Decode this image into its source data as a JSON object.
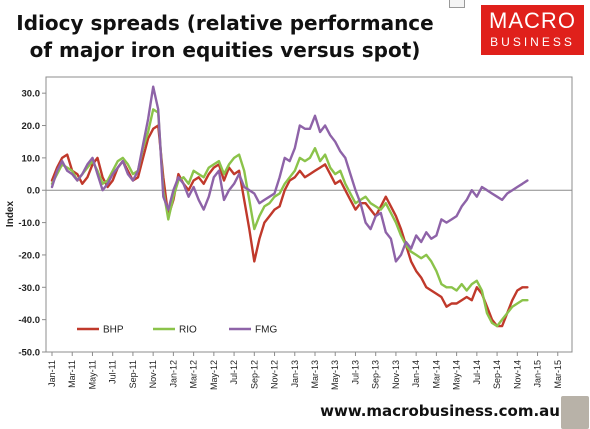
{
  "header": {
    "title_line1": "Idiocy spreads (relative performance",
    "title_line2": "of major iron equities versus spot)"
  },
  "logo": {
    "line1": "MACRO",
    "line2": "BUSINESS",
    "color": "#e0201b"
  },
  "footer": {
    "website": "www.macrobusiness.com.au"
  },
  "chart_data": {
    "type": "line",
    "title": "Idiocy spreads (relative performance of major iron equities versus spot)",
    "xlabel": "",
    "ylabel": "Index",
    "ylim": [
      -50,
      35
    ],
    "yticks": [
      30,
      20,
      10,
      0,
      -10,
      -20,
      -30,
      -40,
      -50
    ],
    "ytick_labels": [
      "30.0",
      "20.0",
      "10.0",
      "0.0",
      "-10.0",
      "-20.0",
      "-30.0",
      "-40.0",
      "-50.0"
    ],
    "xtick_labels": [
      "Jan-11",
      "Mar-11",
      "May-11",
      "Jul-11",
      "Sep-11",
      "Nov-11",
      "Jan-12",
      "Mar-12",
      "May-12",
      "Jul-12",
      "Sep-12",
      "Nov-12",
      "Jan-13",
      "Mar-13",
      "May-13",
      "Jul-13",
      "Sep-13",
      "Nov-13",
      "Jan-14",
      "Mar-14",
      "May-14",
      "Jul-14",
      "Sep-14",
      "Nov-14",
      "Jan-15",
      "Mar-15"
    ],
    "grid": false,
    "legend_position": "bottom-left",
    "series": [
      {
        "name": "BHP",
        "color": "#c0392b",
        "points": [
          [
            0,
            3
          ],
          [
            0.5,
            7
          ],
          [
            1,
            10
          ],
          [
            1.5,
            11
          ],
          [
            2,
            6
          ],
          [
            2.5,
            5
          ],
          [
            3,
            2
          ],
          [
            3.5,
            4
          ],
          [
            4,
            8
          ],
          [
            4.5,
            10
          ],
          [
            5,
            4
          ],
          [
            5.5,
            1
          ],
          [
            6,
            3
          ],
          [
            6.5,
            7
          ],
          [
            7,
            9
          ],
          [
            7.5,
            6
          ],
          [
            8,
            3
          ],
          [
            8.5,
            4
          ],
          [
            9,
            10
          ],
          [
            9.5,
            16
          ],
          [
            10,
            19
          ],
          [
            10.5,
            20
          ],
          [
            11,
            4
          ],
          [
            11.5,
            -8
          ],
          [
            12,
            -3
          ],
          [
            12.5,
            5
          ],
          [
            13,
            2
          ],
          [
            13.5,
            0
          ],
          [
            14,
            3
          ],
          [
            14.5,
            4
          ],
          [
            15,
            2
          ],
          [
            15.5,
            5
          ],
          [
            16,
            7
          ],
          [
            16.5,
            8
          ],
          [
            17,
            3
          ],
          [
            17.5,
            7
          ],
          [
            18,
            5
          ],
          [
            18.5,
            6
          ],
          [
            19,
            -3
          ],
          [
            19.5,
            -12
          ],
          [
            20,
            -22
          ],
          [
            20.5,
            -15
          ],
          [
            21,
            -10
          ],
          [
            21.5,
            -8
          ],
          [
            22,
            -6
          ],
          [
            22.5,
            -5
          ],
          [
            23,
            0
          ],
          [
            23.5,
            3
          ],
          [
            24,
            4
          ],
          [
            24.5,
            6
          ],
          [
            25,
            4
          ],
          [
            25.5,
            5
          ],
          [
            26,
            6
          ],
          [
            26.5,
            7
          ],
          [
            27,
            8
          ],
          [
            27.5,
            5
          ],
          [
            28,
            2
          ],
          [
            28.5,
            3
          ],
          [
            29,
            0
          ],
          [
            29.5,
            -3
          ],
          [
            30,
            -6
          ],
          [
            30.5,
            -4
          ],
          [
            31,
            -4
          ],
          [
            31.5,
            -6
          ],
          [
            32,
            -8
          ],
          [
            32.5,
            -5
          ],
          [
            33,
            -2
          ],
          [
            33.5,
            -5
          ],
          [
            34,
            -8
          ],
          [
            34.5,
            -12
          ],
          [
            35,
            -17
          ],
          [
            35.5,
            -22
          ],
          [
            36,
            -25
          ],
          [
            36.5,
            -27
          ],
          [
            37,
            -30
          ],
          [
            37.5,
            -31
          ],
          [
            38,
            -32
          ],
          [
            38.5,
            -33
          ],
          [
            39,
            -36
          ],
          [
            39.5,
            -35
          ],
          [
            40,
            -35
          ],
          [
            40.5,
            -34
          ],
          [
            41,
            -33
          ],
          [
            41.5,
            -34
          ],
          [
            42,
            -30
          ],
          [
            42.5,
            -32
          ],
          [
            43,
            -36
          ],
          [
            43.5,
            -40
          ],
          [
            44,
            -42
          ],
          [
            44.5,
            -42
          ],
          [
            45,
            -38
          ],
          [
            45.5,
            -34
          ],
          [
            46,
            -31
          ],
          [
            46.5,
            -30
          ],
          [
            47,
            -30
          ]
        ]
      },
      {
        "name": "RIO",
        "color": "#8bc34a",
        "points": [
          [
            0,
            2
          ],
          [
            0.5,
            5
          ],
          [
            1,
            8
          ],
          [
            1.5,
            7
          ],
          [
            2,
            6
          ],
          [
            2.5,
            3
          ],
          [
            3,
            5
          ],
          [
            3.5,
            7
          ],
          [
            4,
            9
          ],
          [
            4.5,
            6
          ],
          [
            5,
            2
          ],
          [
            5.5,
            3
          ],
          [
            6,
            6
          ],
          [
            6.5,
            9
          ],
          [
            7,
            10
          ],
          [
            7.5,
            8
          ],
          [
            8,
            5
          ],
          [
            8.5,
            6
          ],
          [
            9,
            13
          ],
          [
            9.5,
            18
          ],
          [
            10,
            25
          ],
          [
            10.5,
            24
          ],
          [
            11,
            0
          ],
          [
            11.5,
            -9
          ],
          [
            12,
            -2
          ],
          [
            12.5,
            3
          ],
          [
            13,
            4
          ],
          [
            13.5,
            2
          ],
          [
            14,
            6
          ],
          [
            14.5,
            5
          ],
          [
            15,
            4
          ],
          [
            15.5,
            7
          ],
          [
            16,
            8
          ],
          [
            16.5,
            9
          ],
          [
            17,
            5
          ],
          [
            17.5,
            8
          ],
          [
            18,
            10
          ],
          [
            18.5,
            11
          ],
          [
            19,
            6
          ],
          [
            19.5,
            -3
          ],
          [
            20,
            -12
          ],
          [
            20.5,
            -8
          ],
          [
            21,
            -5
          ],
          [
            21.5,
            -4
          ],
          [
            22,
            -2
          ],
          [
            22.5,
            -1
          ],
          [
            23,
            2
          ],
          [
            23.5,
            4
          ],
          [
            24,
            6
          ],
          [
            24.5,
            10
          ],
          [
            25,
            9
          ],
          [
            25.5,
            10
          ],
          [
            26,
            13
          ],
          [
            26.5,
            9
          ],
          [
            27,
            11
          ],
          [
            27.5,
            7
          ],
          [
            28,
            5
          ],
          [
            28.5,
            6
          ],
          [
            29,
            2
          ],
          [
            29.5,
            -1
          ],
          [
            30,
            -4
          ],
          [
            30.5,
            -3
          ],
          [
            31,
            -2
          ],
          [
            31.5,
            -4
          ],
          [
            32,
            -5
          ],
          [
            32.5,
            -6
          ],
          [
            33,
            -4
          ],
          [
            33.5,
            -7
          ],
          [
            34,
            -10
          ],
          [
            34.5,
            -14
          ],
          [
            35,
            -17
          ],
          [
            35.5,
            -19
          ],
          [
            36,
            -20
          ],
          [
            36.5,
            -21
          ],
          [
            37,
            -20
          ],
          [
            37.5,
            -22
          ],
          [
            38,
            -25
          ],
          [
            38.5,
            -29
          ],
          [
            39,
            -30
          ],
          [
            39.5,
            -30
          ],
          [
            40,
            -31
          ],
          [
            40.5,
            -29
          ],
          [
            41,
            -31
          ],
          [
            41.5,
            -29
          ],
          [
            42,
            -28
          ],
          [
            42.5,
            -31
          ],
          [
            43,
            -38
          ],
          [
            43.5,
            -41
          ],
          [
            44,
            -42
          ],
          [
            44.5,
            -40
          ],
          [
            45,
            -38
          ],
          [
            45.5,
            -36
          ],
          [
            46,
            -35
          ],
          [
            46.5,
            -34
          ],
          [
            47,
            -34
          ]
        ]
      },
      {
        "name": "FMG",
        "color": "#8e63a8",
        "points": [
          [
            0,
            1
          ],
          [
            0.5,
            6
          ],
          [
            1,
            9
          ],
          [
            1.5,
            6
          ],
          [
            2,
            5
          ],
          [
            2.5,
            3
          ],
          [
            3,
            5
          ],
          [
            3.5,
            8
          ],
          [
            4,
            10
          ],
          [
            4.5,
            5
          ],
          [
            5,
            0
          ],
          [
            5.5,
            2
          ],
          [
            6,
            5
          ],
          [
            6.5,
            7
          ],
          [
            7,
            9
          ],
          [
            7.5,
            5
          ],
          [
            8,
            3
          ],
          [
            8.5,
            6
          ],
          [
            9,
            14
          ],
          [
            9.5,
            22
          ],
          [
            10,
            32
          ],
          [
            10.5,
            25
          ],
          [
            11,
            -2
          ],
          [
            11.5,
            -6
          ],
          [
            12,
            0
          ],
          [
            12.5,
            4
          ],
          [
            13,
            2
          ],
          [
            13.5,
            -2
          ],
          [
            14,
            1
          ],
          [
            14.5,
            -3
          ],
          [
            15,
            -6
          ],
          [
            15.5,
            -2
          ],
          [
            16,
            4
          ],
          [
            16.5,
            6
          ],
          [
            17,
            -3
          ],
          [
            17.5,
            0
          ],
          [
            18,
            2
          ],
          [
            18.5,
            5
          ],
          [
            19,
            1
          ],
          [
            19.5,
            0
          ],
          [
            20,
            -1
          ],
          [
            20.5,
            -4
          ],
          [
            21,
            -3
          ],
          [
            21.5,
            -2
          ],
          [
            22,
            -1
          ],
          [
            22.5,
            4
          ],
          [
            23,
            10
          ],
          [
            23.5,
            9
          ],
          [
            24,
            13
          ],
          [
            24.5,
            20
          ],
          [
            25,
            19
          ],
          [
            25.5,
            19
          ],
          [
            26,
            23
          ],
          [
            26.5,
            18
          ],
          [
            27,
            20
          ],
          [
            27.5,
            17
          ],
          [
            28,
            15
          ],
          [
            28.5,
            12
          ],
          [
            29,
            10
          ],
          [
            29.5,
            5
          ],
          [
            30,
            0
          ],
          [
            30.5,
            -4
          ],
          [
            31,
            -10
          ],
          [
            31.5,
            -12
          ],
          [
            32,
            -8
          ],
          [
            32.5,
            -7
          ],
          [
            33,
            -13
          ],
          [
            33.5,
            -15
          ],
          [
            34,
            -22
          ],
          [
            34.5,
            -20
          ],
          [
            35,
            -16
          ],
          [
            35.5,
            -18
          ],
          [
            36,
            -14
          ],
          [
            36.5,
            -16
          ],
          [
            37,
            -13
          ],
          [
            37.5,
            -15
          ],
          [
            38,
            -14
          ],
          [
            38.5,
            -9
          ],
          [
            39,
            -10
          ],
          [
            39.5,
            -9
          ],
          [
            40,
            -8
          ],
          [
            40.5,
            -5
          ],
          [
            41,
            -3
          ],
          [
            41.5,
            0
          ],
          [
            42,
            -2
          ],
          [
            42.5,
            1
          ],
          [
            43,
            0
          ],
          [
            43.5,
            -1
          ],
          [
            44,
            -2
          ],
          [
            44.5,
            -3
          ],
          [
            45,
            -1
          ],
          [
            45.5,
            0
          ],
          [
            46,
            1
          ],
          [
            46.5,
            2
          ],
          [
            47,
            3
          ]
        ]
      }
    ]
  }
}
